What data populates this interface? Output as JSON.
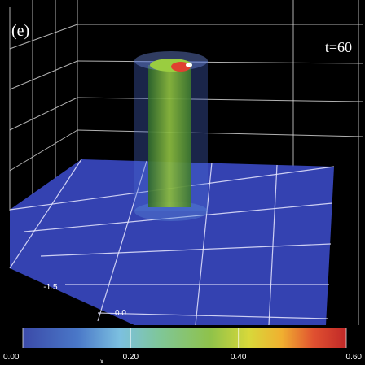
{
  "panel_label": "(e)",
  "time_label": "t=60",
  "axis_labels": {
    "depth_tick": "-1.5",
    "width_tick": "0.0",
    "axis_name": "x"
  },
  "colorbar": {
    "range": [
      0,
      0.6
    ],
    "ticks": [
      {
        "value": 0,
        "label": "0.00"
      },
      {
        "value": 0.2,
        "label": "0.20"
      },
      {
        "value": 0.4,
        "label": "0.40"
      },
      {
        "value": 0.6,
        "label": "0.60"
      }
    ]
  }
}
